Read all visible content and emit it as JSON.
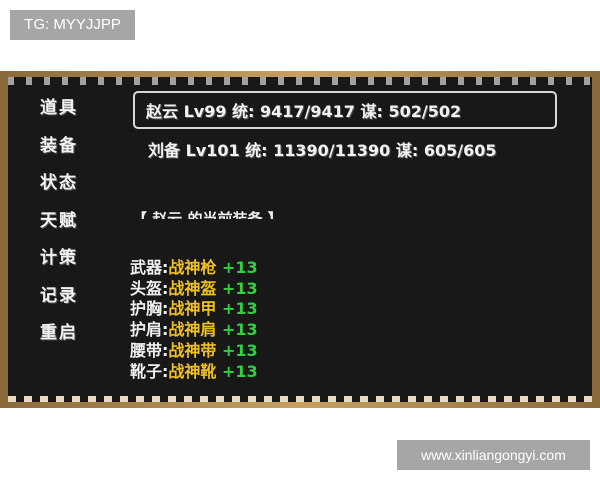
{
  "watermark_top": "TG: MYYJJPP",
  "watermark_bottom": "www.xinliangongyi.com",
  "menu": [
    "道具",
    "装备",
    "状态",
    "天赋",
    "计策",
    "记录",
    "重启"
  ],
  "generals": [
    {
      "text": "赵云 Lv99 统: 9417/9417 谋: 502/502",
      "selected": true
    },
    {
      "text": "刘备 Lv101 统: 11390/11390 谋: 605/605",
      "selected": false
    }
  ],
  "equip_header": "【 赵云 的当前装备 】",
  "equipment": [
    {
      "slot": "武器:",
      "item": "战神枪",
      "plus": "+13"
    },
    {
      "slot": "头盔:",
      "item": "战神盔",
      "plus": "+13"
    },
    {
      "slot": "护胸:",
      "item": "战神甲",
      "plus": "+13"
    },
    {
      "slot": "护肩:",
      "item": "战神肩",
      "plus": "+13"
    },
    {
      "slot": "腰带:",
      "item": "战神带",
      "plus": "+13"
    },
    {
      "slot": "靴子:",
      "item": "战神靴",
      "plus": "+13"
    }
  ],
  "colors": {
    "item": "#f0c020",
    "plus": "#30d040",
    "bg": "#181818"
  }
}
